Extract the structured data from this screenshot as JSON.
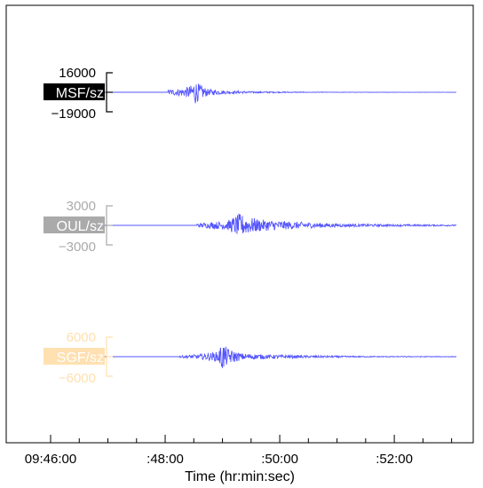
{
  "chart_data": {
    "type": "line",
    "xlabel": "Time (hr:min:sec)",
    "x_range": [
      "09:46:00",
      "09:53:05"
    ],
    "x_ticks": [
      "09:46:00",
      ":48:00",
      ":50:00",
      ":52:00"
    ],
    "trace_color": "#5555ff",
    "grid": false,
    "series": [
      {
        "name": "MSF/sz",
        "label_bg": "#000000",
        "label_fg": "#ffffff",
        "scale_color": "#000000",
        "scale_labels": [
          "16000",
          "-19000"
        ],
        "ylim": [
          -19000,
          16000
        ],
        "onset": "09:48:03",
        "peak_time": "09:48:30",
        "envelope": [
          [
            "09:48:03",
            2500
          ],
          [
            "09:48:20",
            4200
          ],
          [
            "09:48:28",
            7000
          ],
          [
            "09:48:31",
            12500
          ],
          [
            "09:48:34",
            9000
          ],
          [
            "09:48:45",
            3000
          ],
          [
            "09:49:05",
            1500
          ],
          [
            "09:49:40",
            700
          ],
          [
            "09:50:30",
            300
          ],
          [
            "09:51:30",
            120
          ],
          [
            "09:53:05",
            60
          ]
        ]
      },
      {
        "name": "OUL/sz",
        "label_bg": "#aaaaaa",
        "label_fg": "#ffffff",
        "scale_color": "#aaaaaa",
        "scale_labels": [
          "3000",
          "-3000"
        ],
        "ylim": [
          -3000,
          3000
        ],
        "onset": "09:48:33",
        "peak_time": "09:49:20",
        "envelope": [
          [
            "09:48:33",
            300
          ],
          [
            "09:48:50",
            500
          ],
          [
            "09:49:05",
            700
          ],
          [
            "09:49:18",
            1800
          ],
          [
            "09:49:24",
            1400
          ],
          [
            "09:49:40",
            900
          ],
          [
            "09:50:00",
            700
          ],
          [
            "09:50:30",
            450
          ],
          [
            "09:51:00",
            260
          ],
          [
            "09:52:00",
            150
          ],
          [
            "09:53:05",
            100
          ]
        ]
      },
      {
        "name": "SGF/sz",
        "label_bg": "#ffe0b0",
        "label_fg": "#ffffff",
        "scale_color": "#ffe0b0",
        "scale_labels": [
          "6000",
          "-6000"
        ],
        "ylim": [
          -6000,
          6000
        ],
        "onset": "09:48:15",
        "peak_time": "09:49:00",
        "envelope": [
          [
            "09:48:15",
            300
          ],
          [
            "09:48:35",
            700
          ],
          [
            "09:48:55",
            1500
          ],
          [
            "09:49:00",
            4500
          ],
          [
            "09:49:05",
            2500
          ],
          [
            "09:49:20",
            1000
          ],
          [
            "09:49:50",
            600
          ],
          [
            "09:50:30",
            350
          ],
          [
            "09:51:30",
            150
          ],
          [
            "09:53:05",
            80
          ]
        ]
      }
    ]
  }
}
